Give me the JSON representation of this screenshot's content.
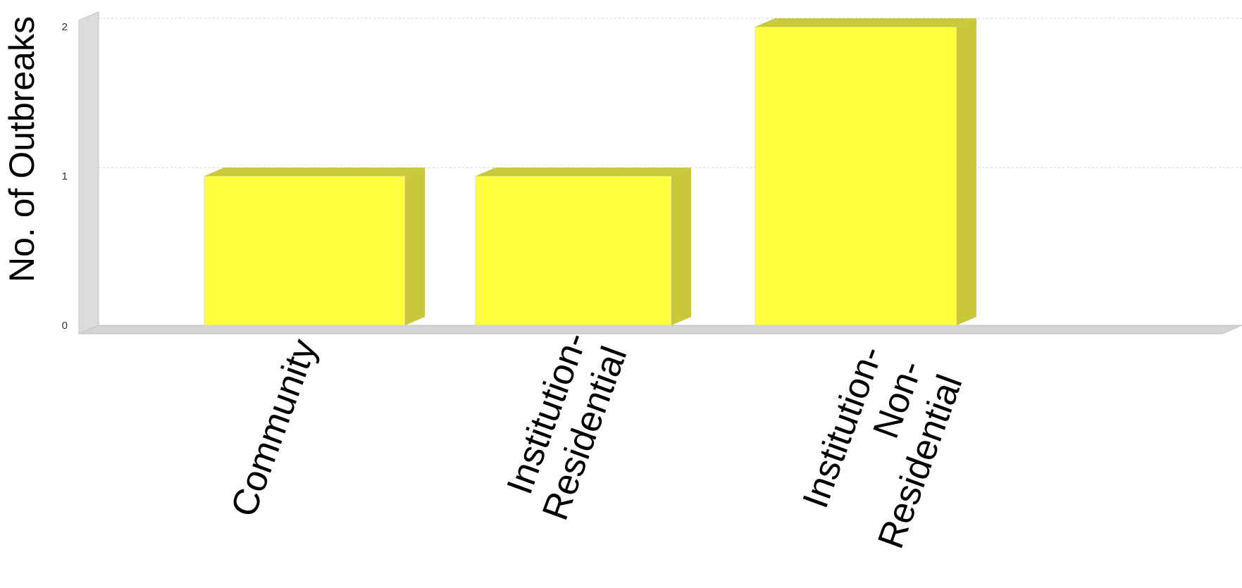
{
  "chart_data": {
    "type": "bar",
    "title": "",
    "xlabel": "",
    "ylabel": "No. of Outbreaks",
    "categories": [
      "Community",
      "Institution-Residential",
      "Institution-Non-Residential"
    ],
    "category_label_lines": [
      [
        "Community"
      ],
      [
        "Institution-",
        "Residential"
      ],
      [
        "Institution-",
        "Non-",
        "Residential"
      ]
    ],
    "values": [
      1,
      1,
      2
    ],
    "ylim": [
      0,
      2.1
    ],
    "yticks": [
      "0",
      "1",
      "2"
    ],
    "grid": true,
    "legend": "none",
    "three_d": true,
    "colors": {
      "bar_front": "#ffff3d",
      "bar_side": "#c8c83a",
      "bar_top": "#c9c93c",
      "wall": "#dcdcdc",
      "floor": "#d4d4d4",
      "gridline": "#d0d0d0"
    }
  }
}
